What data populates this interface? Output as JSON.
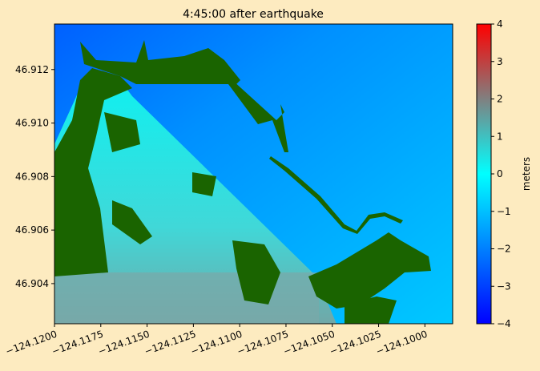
{
  "chart_data": {
    "type": "heatmap",
    "title": "4:45:00 after earthquake",
    "xlabel": "",
    "ylabel": "",
    "xlim": [
      -124.12,
      -124.0985
    ],
    "ylim": [
      46.9025,
      46.9137
    ],
    "xticks": [
      "−124.1200",
      "−124.1175",
      "−124.1150",
      "−124.1125",
      "−124.1100",
      "−124.1075",
      "−124.1050",
      "−124.1025",
      "−124.1000"
    ],
    "xtick_values": [
      -124.12,
      -124.1175,
      -124.115,
      -124.1125,
      -124.11,
      -124.1075,
      -124.105,
      -124.1025,
      -124.1
    ],
    "yticks": [
      "46.904",
      "46.906",
      "46.908",
      "46.910",
      "46.912"
    ],
    "ytick_values": [
      46.904,
      46.906,
      46.908,
      46.91,
      46.912
    ],
    "colorbar": {
      "label": "meters",
      "range": [
        -4,
        4
      ],
      "ticks": [
        "−4",
        "−3",
        "−2",
        "−1",
        "0",
        "1",
        "2",
        "3",
        "4"
      ],
      "tick_values": [
        -4,
        -3,
        -2,
        -1,
        0,
        1,
        2,
        3,
        4
      ],
      "colors": [
        "#0000ff",
        "#0040ff",
        "#0080ff",
        "#00c0ff",
        "#00ffff",
        "#40c0c0",
        "#808080",
        "#c04040",
        "#ff0000"
      ]
    },
    "land_color": "#1a6400",
    "grid": false
  }
}
